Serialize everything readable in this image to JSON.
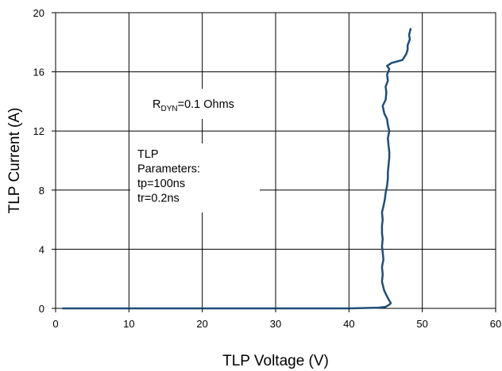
{
  "chart_data": {
    "type": "line",
    "xlabel": "TLP Voltage (V)",
    "ylabel": "TLP Current (A)",
    "xlim": [
      0,
      60
    ],
    "ylim": [
      0,
      20
    ],
    "x_ticks": [
      "0",
      "10",
      "20",
      "30",
      "40",
      "50",
      "60"
    ],
    "y_ticks": [
      "0",
      "4",
      "8",
      "12",
      "16",
      "20"
    ],
    "grid": true,
    "line_color": "#1f4e79",
    "annotations": {
      "rdyn": {
        "prefix": "R",
        "subscript": "DYN",
        "suffix": "=0.1  Ohms"
      },
      "params": [
        "TLP",
        "Parameters:",
        "tp=100ns",
        "tr=0.2ns"
      ]
    },
    "series": [
      {
        "x": [
          1.0,
          10,
          20,
          30,
          40,
          44.0,
          45.0,
          45.5,
          45.7,
          45.3,
          44.8,
          44.5,
          44.6,
          44.5,
          44.7,
          44.6,
          44.5,
          44.6,
          44.5,
          44.5,
          44.6,
          44.5,
          44.7,
          44.9,
          45.0,
          45.2,
          45.3,
          45.3,
          45.4,
          45.5,
          45.5,
          45.4,
          45.3,
          45.5,
          45.3,
          45.2,
          44.8,
          44.6,
          45.0,
          45.1,
          45.0,
          45.3,
          45.2,
          45.5,
          45.2,
          45.8,
          47.3,
          47.8,
          48.0,
          48.0,
          48.3,
          48.2,
          48.4
        ],
        "y": [
          0.0,
          0.0,
          0.0,
          0.0,
          0.0,
          0.05,
          0.1,
          0.25,
          0.35,
          0.7,
          1.2,
          1.8,
          2.3,
          2.8,
          3.3,
          3.8,
          4.2,
          4.7,
          5.1,
          5.6,
          6.0,
          6.5,
          6.9,
          7.4,
          7.8,
          8.3,
          8.8,
          9.2,
          9.7,
          10.2,
          10.6,
          11.0,
          11.5,
          12.0,
          12.4,
          12.8,
          13.2,
          13.7,
          14.1,
          14.6,
          15.0,
          15.4,
          15.8,
          16.2,
          16.4,
          16.6,
          16.8,
          17.2,
          17.5,
          17.8,
          18.2,
          18.5,
          18.9
        ]
      }
    ]
  }
}
